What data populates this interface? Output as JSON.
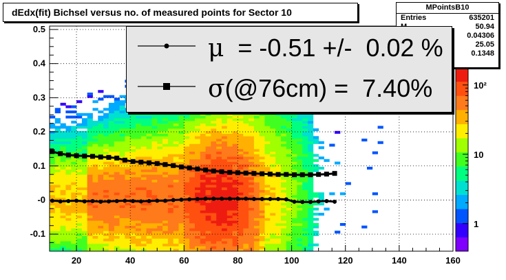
{
  "title": "dEdx(fit) Bichsel versus no. of measured points for Sector 10",
  "stats": {
    "name": "MPointsB10",
    "rows": [
      {
        "label": "Entries",
        "value": "635201"
      },
      {
        "label": "M",
        "value": "50.94"
      },
      {
        "label": "",
        "value": "0.04306"
      },
      {
        "label": "",
        "value": "25.05"
      },
      {
        "label": "",
        "value": "0.1348"
      }
    ]
  },
  "legend": {
    "mu_symbol": "μ",
    "mu_text": "  = -0.51 +/-  0.02 %",
    "sigma_symbol": "σ",
    "sigma_text": "(@76cm) =  7.40%"
  },
  "colors": {
    "mu_series": "#000000",
    "sigma_series": "#000000",
    "palette": [
      "#7f00ff",
      "#3300ff",
      "#0055ff",
      "#00aaff",
      "#00e0d0",
      "#00ff80",
      "#40ff20",
      "#a0ff00",
      "#ffee00",
      "#ffb000",
      "#ff7a1a",
      "#ff5010",
      "#ee1c10"
    ]
  },
  "chart_data": {
    "type": "heatmap",
    "title": "dEdx(fit) Bichsel versus no. of measured points for Sector 10",
    "xlabel": "",
    "ylabel": "",
    "xlim": [
      10,
      160
    ],
    "ylim": [
      -0.15,
      0.51
    ],
    "x_ticks": [
      20,
      40,
      60,
      80,
      100,
      120,
      140,
      160
    ],
    "y_ticks": [
      -0.1,
      0,
      0.1,
      0.2,
      0.3,
      0.4,
      0.5
    ],
    "y_tick_labels": [
      "-0.1",
      "-0",
      "0.1",
      "0.2",
      "0.3",
      "0.4",
      "0.5"
    ],
    "grid": true,
    "z_scale": "log",
    "z_ticks": [
      1,
      10,
      100
    ],
    "z_tick_labels": [
      "1",
      "10",
      "10²"
    ],
    "series": [
      {
        "name": "μ",
        "marker": "circle",
        "x": [
          11,
          14,
          17,
          20,
          23,
          26,
          29,
          32,
          35,
          38,
          41,
          44,
          47,
          50,
          53,
          56,
          59,
          62,
          65,
          68,
          71,
          74,
          77,
          80,
          83,
          86,
          89,
          92,
          95,
          98,
          101,
          104,
          107,
          110,
          113,
          116
        ],
        "y": [
          -0.002,
          -0.004,
          -0.003,
          -0.002,
          -0.004,
          -0.003,
          -0.005,
          -0.004,
          -0.003,
          -0.002,
          -0.003,
          -0.004,
          -0.003,
          -0.002,
          -0.002,
          0.0,
          0.001,
          0.002,
          0.003,
          0.004,
          0.004,
          0.004,
          0.004,
          0.004,
          0.004,
          0.003,
          0.003,
          0.003,
          0.003,
          0.002,
          -0.005,
          -0.006,
          -0.006,
          -0.004,
          -0.003,
          -0.005
        ]
      },
      {
        "name": "σ(@76cm)",
        "marker": "square",
        "x": [
          11,
          14,
          17,
          20,
          23,
          26,
          29,
          32,
          35,
          38,
          41,
          44,
          47,
          50,
          53,
          56,
          59,
          62,
          65,
          68,
          71,
          74,
          77,
          80,
          83,
          86,
          89,
          92,
          95,
          98,
          101,
          104,
          107,
          110,
          113,
          116
        ],
        "y": [
          0.142,
          0.136,
          0.132,
          0.13,
          0.129,
          0.128,
          0.126,
          0.125,
          0.123,
          0.117,
          0.113,
          0.111,
          0.109,
          0.107,
          0.104,
          0.101,
          0.097,
          0.094,
          0.091,
          0.088,
          0.085,
          0.083,
          0.081,
          0.08,
          0.079,
          0.078,
          0.077,
          0.076,
          0.075,
          0.075,
          0.074,
          0.074,
          0.074,
          0.075,
          0.076,
          0.078
        ]
      }
    ]
  }
}
